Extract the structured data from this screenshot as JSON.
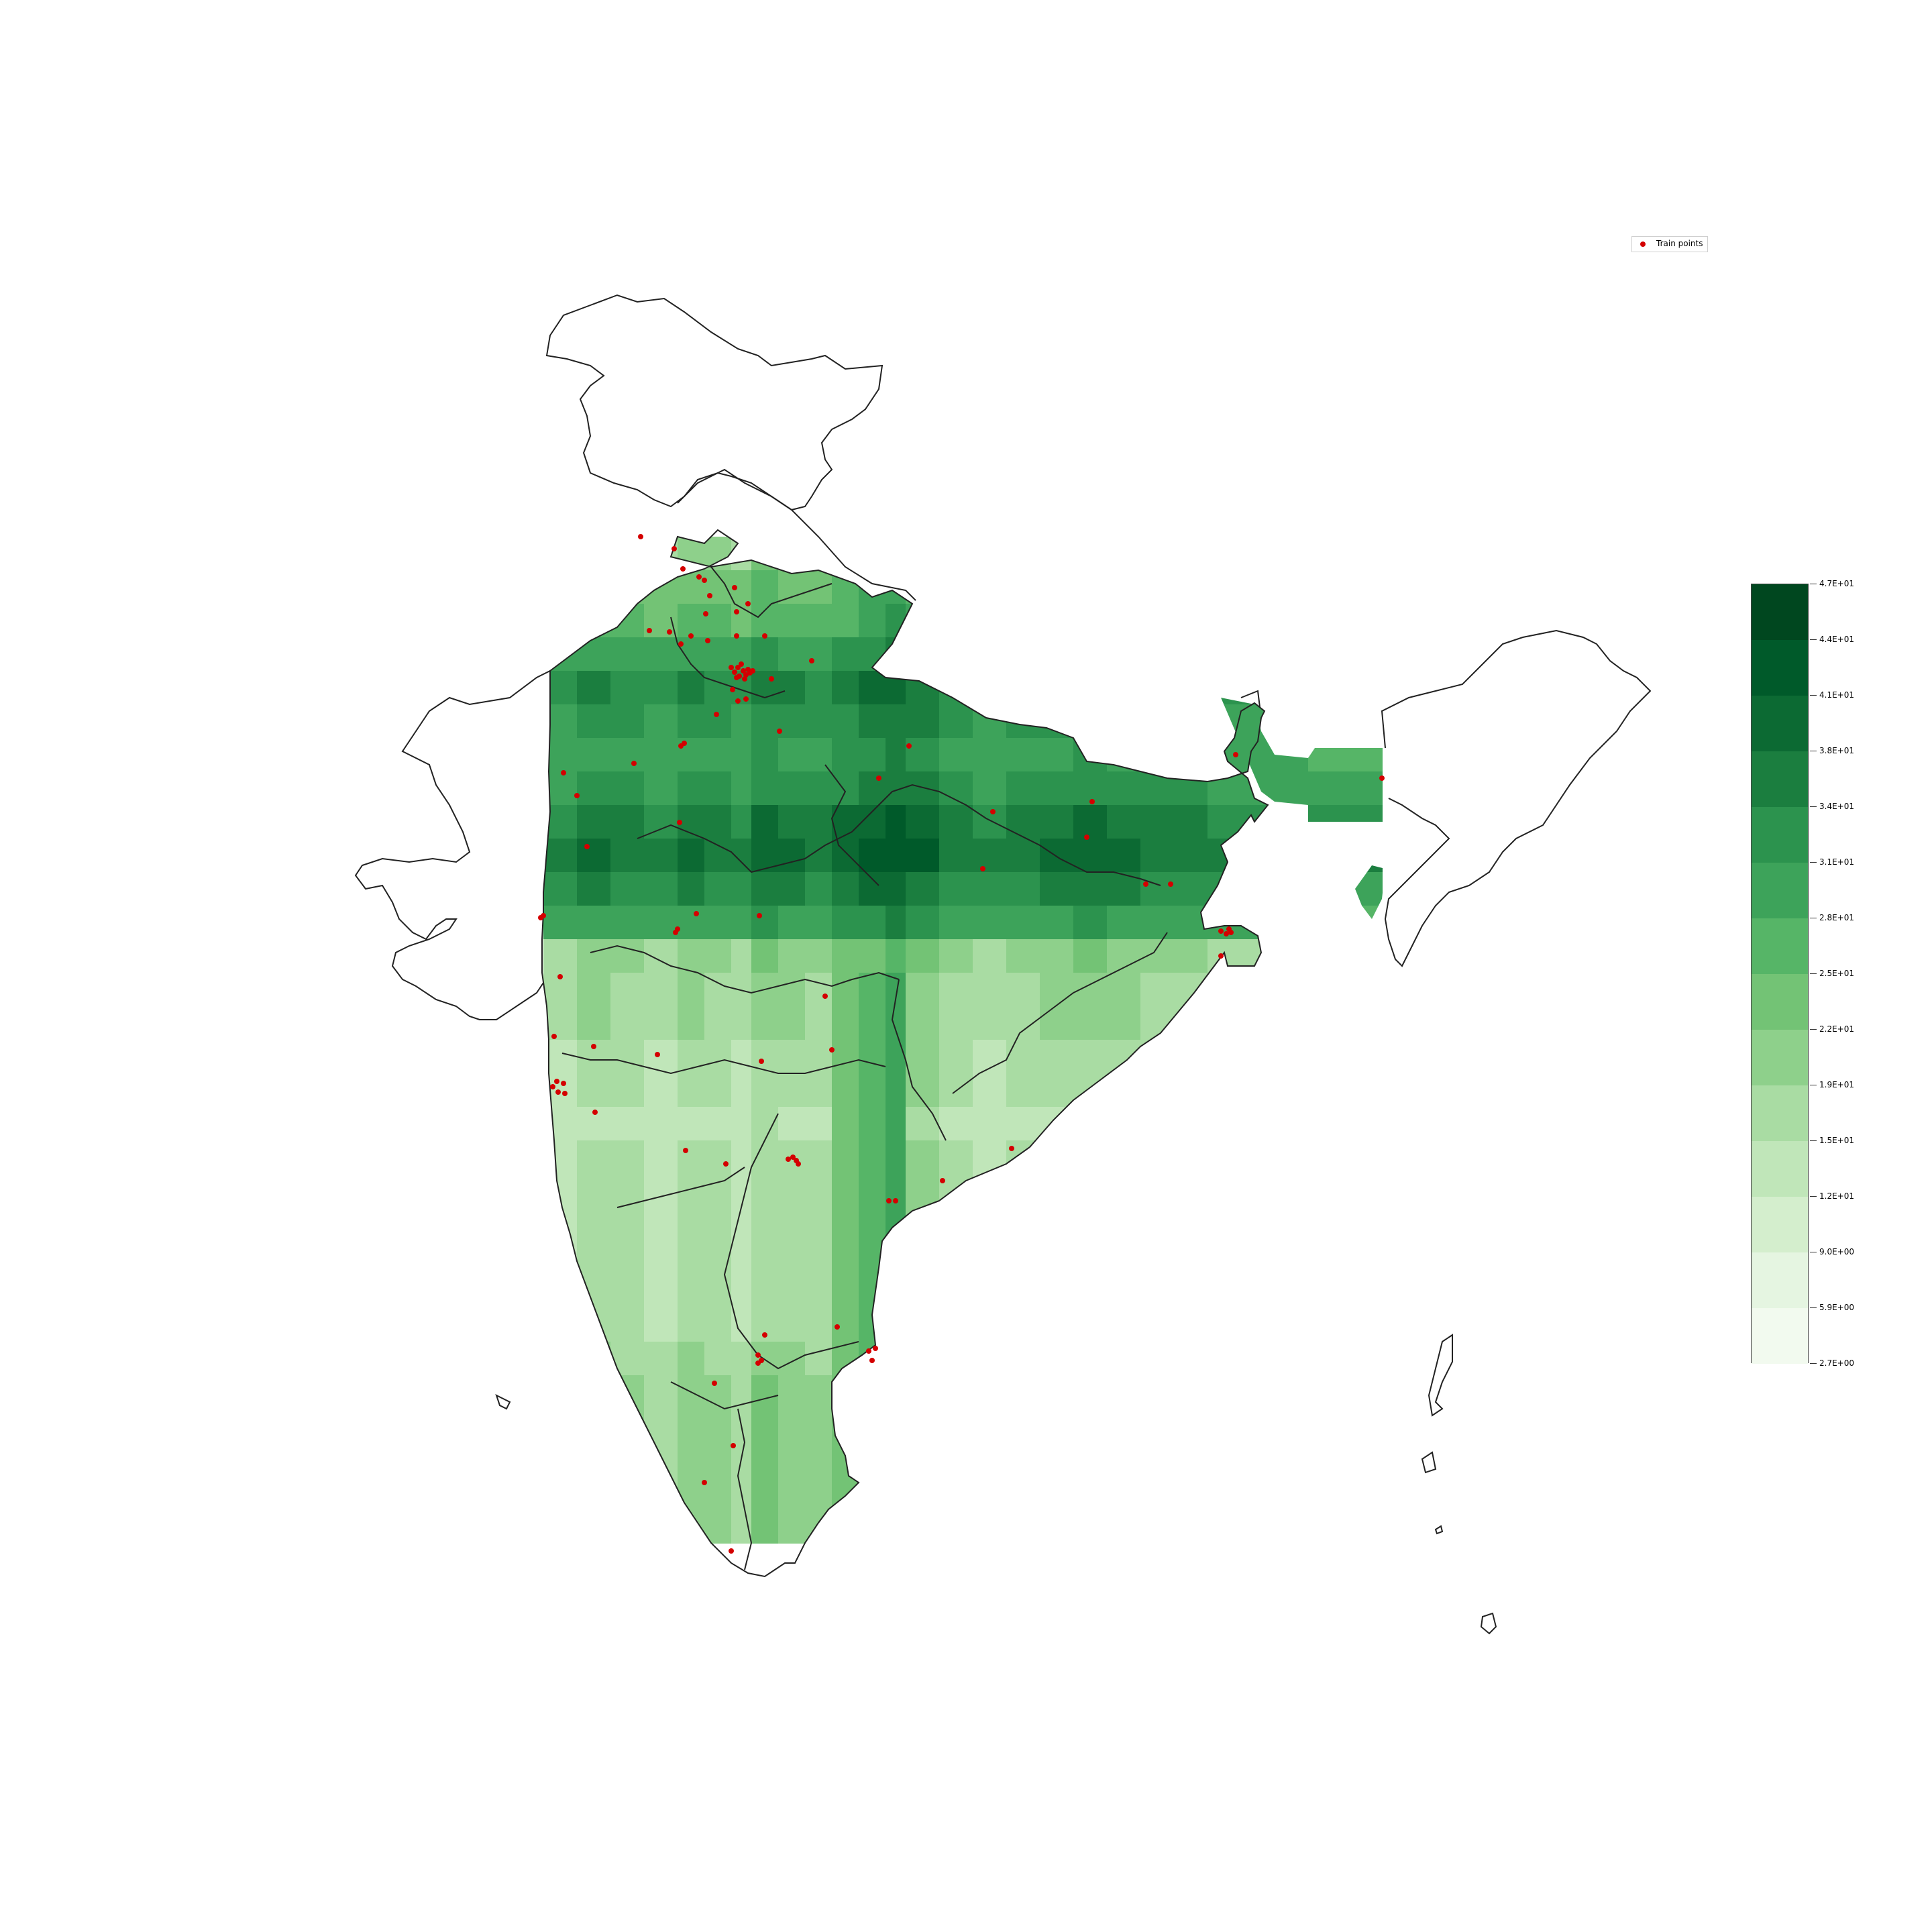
{
  "chart_data": {
    "type": "heatmap",
    "title": "",
    "legend": {
      "entries": [
        {
          "label": "Train points",
          "color": "#d40000",
          "marker": "dot"
        }
      ],
      "placement": "top-right"
    },
    "colormap": "Greens",
    "colorbar": {
      "tick_labels": [
        "2.7E+00",
        "5.9E+00",
        "9.0E+00",
        "1.2E+01",
        "1.5E+01",
        "1.9E+01",
        "2.2E+01",
        "2.5E+01",
        "2.8E+01",
        "3.1E+01",
        "3.4E+01",
        "3.8E+01",
        "4.1E+01",
        "4.4E+01",
        "4.7E+01"
      ],
      "min": 2.7,
      "max": 47,
      "levels": 14,
      "colors": [
        "#f2faef",
        "#e5f5e1",
        "#d4eecd",
        "#c0e6b9",
        "#a9dca3",
        "#8ed08b",
        "#73c375",
        "#56b567",
        "#3da35a",
        "#2c934e",
        "#1b7e3f",
        "#0c6a33",
        "#005a2a",
        "#00471f"
      ]
    },
    "points_count": 110
  }
}
